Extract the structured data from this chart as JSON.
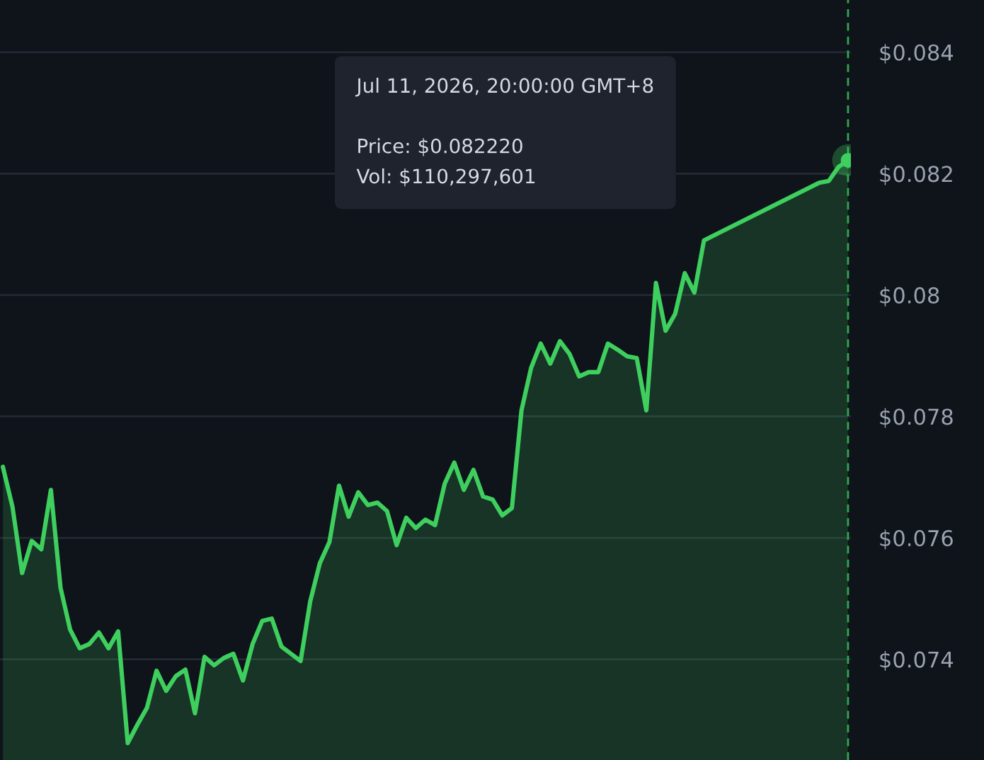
{
  "chart_data": {
    "type": "area",
    "categories": [
      null,
      null,
      null,
      null,
      null,
      null,
      null,
      null,
      null,
      null,
      null,
      null,
      null,
      null,
      null,
      null,
      null,
      null,
      null,
      null,
      null,
      null,
      null,
      null,
      null,
      null,
      null,
      null,
      null,
      null,
      null,
      null,
      null,
      null,
      null,
      null,
      null,
      null,
      null,
      null,
      null,
      null,
      null,
      null,
      null,
      null,
      null,
      null,
      null,
      null,
      null,
      null,
      null,
      null,
      null,
      null,
      null,
      null,
      null,
      null,
      null,
      null,
      null,
      null,
      null,
      null,
      null,
      null,
      null,
      null,
      null,
      null,
      null,
      null,
      null,
      null,
      null,
      null,
      null,
      null,
      null,
      null,
      null,
      null,
      null,
      null,
      null,
      null,
      null
    ],
    "series": [
      {
        "color": "#3ecf5e",
        "values": [
          0.07717,
          0.07651,
          0.07542,
          0.07595,
          0.07581,
          0.07679,
          0.07518,
          0.07449,
          0.07418,
          0.07425,
          0.07444,
          0.07418,
          0.07446,
          0.07262,
          0.07292,
          0.0732,
          0.07381,
          0.07348,
          0.07372,
          0.07383,
          0.07311,
          0.07404,
          0.0739,
          0.07402,
          0.07409,
          0.07365,
          0.07425,
          0.07463,
          0.07467,
          0.07421,
          0.07409,
          0.07397,
          0.07495,
          0.07558,
          0.07593,
          0.07686,
          0.07635,
          0.07675,
          0.07654,
          0.07658,
          0.07644,
          0.07588,
          0.07633,
          0.07616,
          0.0763,
          0.07621,
          0.07689,
          0.07724,
          0.07679,
          0.07712,
          0.07668,
          0.07663,
          0.07637,
          0.07649,
          0.0781,
          0.0788,
          0.0792,
          0.07887,
          0.07924,
          0.07903,
          0.07866,
          0.07873,
          0.07873,
          0.0792,
          0.0791,
          0.07899,
          0.07896,
          0.0781,
          0.0802,
          0.07941,
          0.07969,
          0.08036,
          0.08004,
          0.0809,
          null,
          null,
          null,
          null,
          null,
          null,
          null,
          null,
          null,
          null,
          null,
          0.08185,
          0.08188,
          0.08211,
          0.08222
        ]
      }
    ],
    "ylim": [
      0.07234,
      0.08486
    ],
    "yticks": [
      {
        "value": 0.074,
        "label": "$0.074"
      },
      {
        "value": 0.076,
        "label": "$0.076"
      },
      {
        "value": 0.078,
        "label": "$0.078"
      },
      {
        "value": 0.08,
        "label": "$0.08"
      },
      {
        "value": 0.082,
        "label": "$0.082"
      },
      {
        "value": 0.084,
        "label": "$0.084"
      }
    ],
    "tick_labels": "y",
    "grid": "y",
    "legend": false,
    "annotations": [
      "Jul 11, 2026, 20:00:00 GMT+8\n\nPrice: $0.082220\nVol: $110,297,601"
    ]
  }
}
